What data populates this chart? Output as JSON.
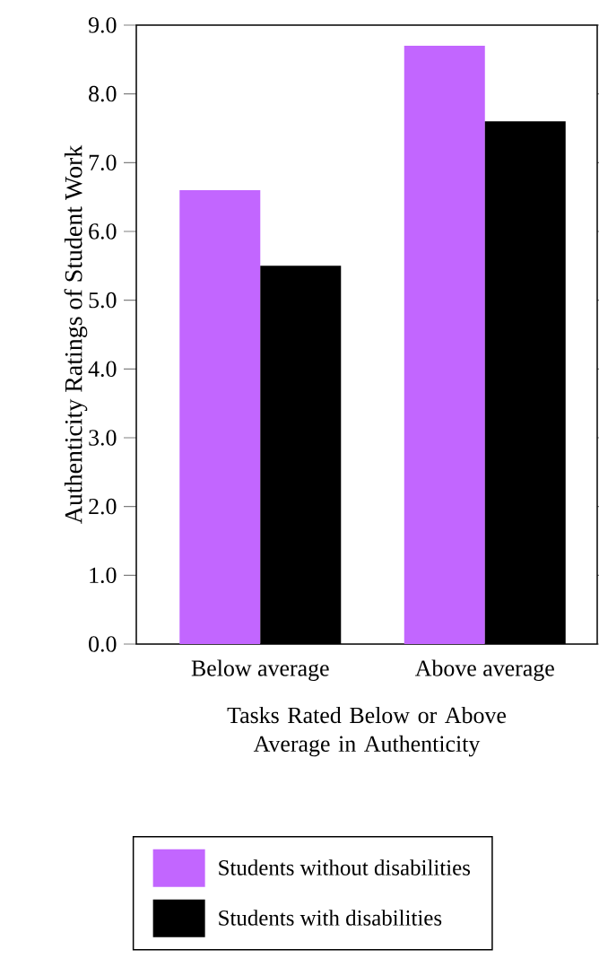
{
  "chart_data": {
    "type": "bar",
    "xlabel": "Tasks Rated Below or Above Average in Authenticity",
    "ylabel": "Authenticity Ratings of Student Work",
    "categories": [
      "Below average",
      "Above average"
    ],
    "series": [
      {
        "name": "Students without disabilities",
        "color": "#c266ff",
        "values": [
          6.6,
          8.7
        ]
      },
      {
        "name": "Students with disabilities",
        "color": "#000000",
        "values": [
          5.5,
          7.6
        ]
      }
    ],
    "ylim": [
      0,
      9
    ],
    "yticks": [
      {
        "value": 0,
        "label": "0.0"
      },
      {
        "value": 1,
        "label": "1.0"
      },
      {
        "value": 2,
        "label": "2.0"
      },
      {
        "value": 3,
        "label": "3.0"
      },
      {
        "value": 4,
        "label": "4.0"
      },
      {
        "value": 5,
        "label": "5.0"
      },
      {
        "value": 6,
        "label": "6.0"
      },
      {
        "value": 7,
        "label": "7.0"
      },
      {
        "value": 8,
        "label": "8.0"
      },
      {
        "value": 9,
        "label": "9.0"
      }
    ],
    "legend": "bottom",
    "grid": false
  }
}
